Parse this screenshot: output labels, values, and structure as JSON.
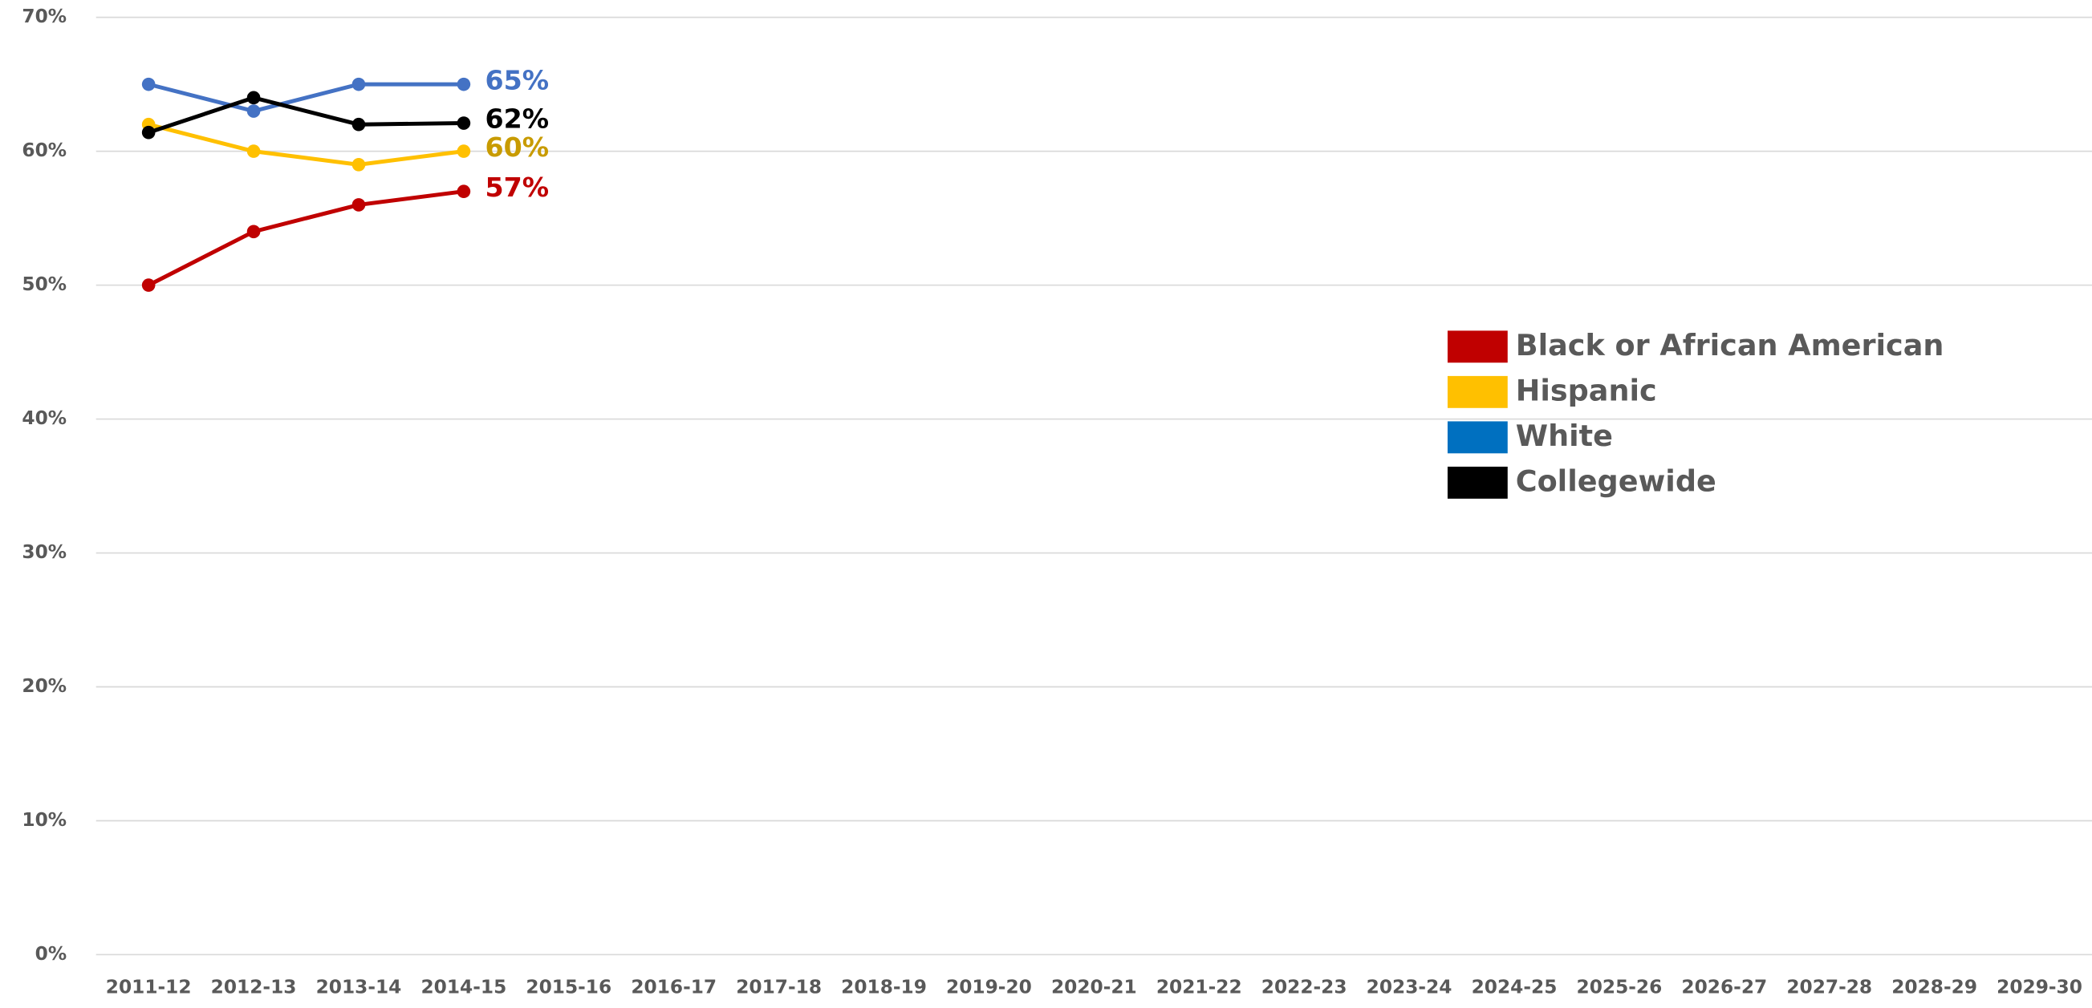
{
  "chart_data": {
    "type": "line",
    "categories": [
      "2011-12",
      "2012-13",
      "2013-14",
      "2014-15",
      "2015-16",
      "2016-17",
      "2017-18",
      "2018-19",
      "2019-20",
      "2020-21",
      "2021-22",
      "2022-23",
      "2023-24",
      "2024-25",
      "2025-26",
      "2026-27",
      "2027-28",
      "2028-29",
      "2029-30"
    ],
    "series": [
      {
        "name": "Black or African American",
        "color": "#c00000",
        "legend_color": "#c00000",
        "label_color": "#c00000",
        "values": [
          50,
          54,
          56,
          57,
          null,
          null,
          null,
          null,
          null,
          null,
          null,
          null,
          null,
          null,
          null,
          null,
          null,
          null,
          null
        ],
        "value_labels": [
          null,
          null,
          null,
          "57%",
          null,
          null,
          null,
          null,
          null,
          null,
          null,
          null,
          null,
          null,
          null,
          null,
          null,
          null,
          null
        ]
      },
      {
        "name": "Hispanic",
        "color": "#ffc000",
        "legend_color": "#ffc000",
        "label_color": "#c89b00",
        "values": [
          62,
          60,
          59,
          60,
          null,
          null,
          null,
          null,
          null,
          null,
          null,
          null,
          null,
          null,
          null,
          null,
          null,
          null,
          null
        ],
        "value_labels": [
          null,
          null,
          null,
          "60%",
          null,
          null,
          null,
          null,
          null,
          null,
          null,
          null,
          null,
          null,
          null,
          null,
          null,
          null,
          null
        ]
      },
      {
        "name": "White",
        "color": "#4472c4",
        "legend_color": "#0070c0",
        "label_color": "#4472c4",
        "values": [
          65,
          63,
          65,
          65,
          null,
          null,
          null,
          null,
          null,
          null,
          null,
          null,
          null,
          null,
          null,
          null,
          null,
          null,
          null
        ],
        "value_labels": [
          null,
          null,
          null,
          "65%",
          null,
          null,
          null,
          null,
          null,
          null,
          null,
          null,
          null,
          null,
          null,
          null,
          null,
          null,
          null
        ]
      },
      {
        "name": "Collegewide",
        "color": "#000000",
        "legend_color": "#000000",
        "label_color": "#000000",
        "values": [
          61.4,
          64,
          62,
          62.1,
          null,
          null,
          null,
          null,
          null,
          null,
          null,
          null,
          null,
          null,
          null,
          null,
          null,
          null,
          null
        ],
        "value_labels": [
          null,
          null,
          null,
          "62%",
          null,
          null,
          null,
          null,
          null,
          null,
          null,
          null,
          null,
          null,
          null,
          null,
          null,
          null,
          null
        ]
      }
    ],
    "ylim": [
      0,
      70
    ],
    "yticks": [
      {
        "value": 0,
        "label": "0%"
      },
      {
        "value": 10,
        "label": "10%"
      },
      {
        "value": 20,
        "label": "20%"
      },
      {
        "value": 30,
        "label": "30%"
      },
      {
        "value": 40,
        "label": "40%"
      },
      {
        "value": 50,
        "label": "50%"
      },
      {
        "value": 60,
        "label": "60%"
      },
      {
        "value": 70,
        "label": "70%"
      }
    ],
    "grid": true,
    "legend": "right"
  }
}
